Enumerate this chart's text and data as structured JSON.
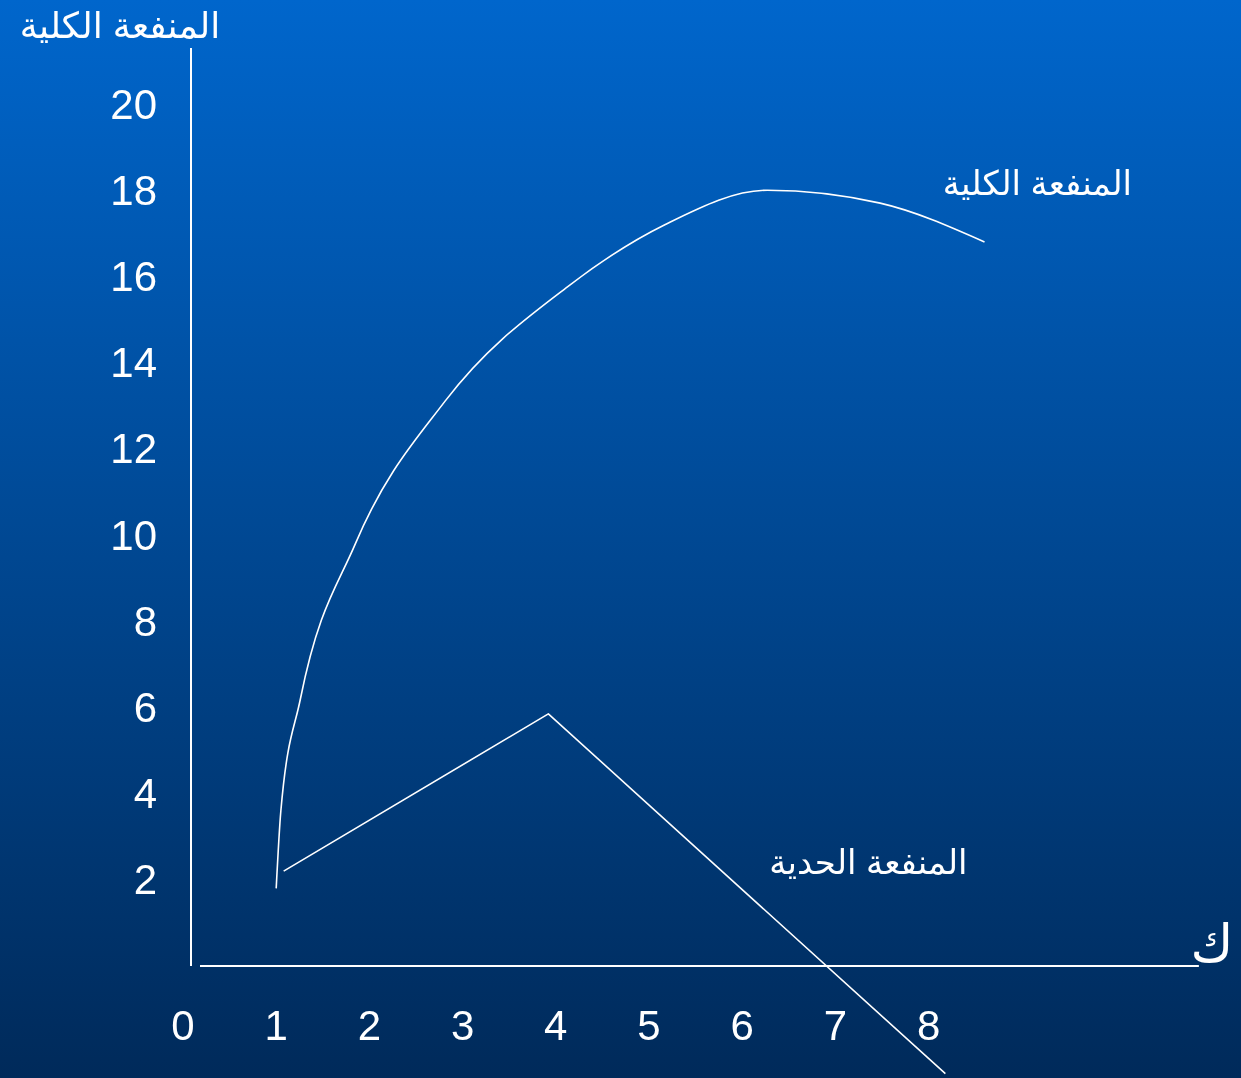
{
  "chart_data": {
    "type": "line",
    "xlabel": "ك",
    "ylabel": "المنفعة الكلية",
    "xlim": [
      0,
      10.9
    ],
    "ylim": [
      -2.6,
      21.3
    ],
    "xticks": [
      0,
      1,
      2,
      3,
      4,
      5,
      6,
      7,
      8
    ],
    "yticks": [
      2,
      4,
      6,
      8,
      10,
      12,
      14,
      16,
      18,
      20
    ],
    "grid": false,
    "marker": "none",
    "series": [
      {
        "name": "المنفعة الكلية",
        "color": "#ffffff",
        "x": [
          1,
          1.05,
          1.26,
          1.85,
          2.81,
          4.15,
          5.17,
          6.27,
          7.48,
          8.6
        ],
        "values": [
          1.8,
          3.6,
          6.2,
          9.8,
          13.1,
          15.8,
          17.2,
          18.0,
          17.7,
          16.8
        ]
      },
      {
        "name": "المنفعة الحدية",
        "color": "#ffffff",
        "x": [
          1.08,
          3.92,
          8.18
        ],
        "values": [
          2.2,
          5.85,
          -2.5
        ]
      }
    ]
  }
}
